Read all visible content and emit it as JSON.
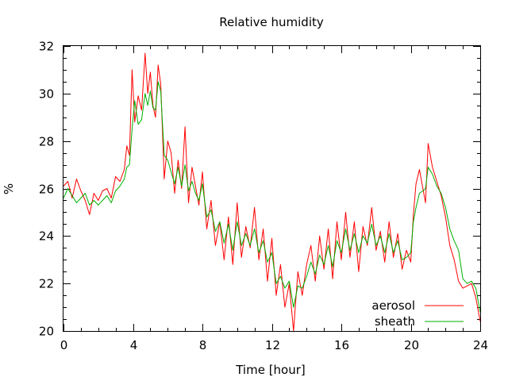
{
  "chart_data": {
    "type": "line",
    "title": "Relative humidity",
    "xlabel": "Time [hour]",
    "ylabel": "%",
    "xlim": [
      0,
      24
    ],
    "ylim": [
      20,
      32
    ],
    "xticks": [
      0,
      4,
      8,
      12,
      16,
      20,
      24
    ],
    "yticks": [
      20,
      22,
      24,
      26,
      28,
      30,
      32
    ],
    "grid": false,
    "legend_position": "bottom-right",
    "series": [
      {
        "name": "aerosol",
        "color": "#ff0000",
        "x": [
          0,
          0.25,
          0.5,
          0.75,
          1,
          1.25,
          1.5,
          1.75,
          2,
          2.25,
          2.5,
          2.75,
          3,
          3.25,
          3.5,
          3.65,
          3.8,
          3.95,
          4.1,
          4.3,
          4.5,
          4.7,
          4.85,
          5.0,
          5.15,
          5.3,
          5.45,
          5.6,
          5.8,
          6.0,
          6.2,
          6.4,
          6.6,
          6.8,
          7.0,
          7.2,
          7.4,
          7.6,
          7.8,
          8.0,
          8.25,
          8.5,
          8.75,
          9.0,
          9.25,
          9.5,
          9.75,
          10.0,
          10.25,
          10.5,
          10.75,
          11.0,
          11.25,
          11.5,
          11.75,
          12.0,
          12.25,
          12.5,
          12.75,
          13.0,
          13.25,
          13.5,
          13.75,
          14.0,
          14.25,
          14.5,
          14.75,
          15.0,
          15.25,
          15.5,
          15.75,
          16.0,
          16.25,
          16.5,
          16.75,
          17.0,
          17.25,
          17.5,
          17.75,
          18.0,
          18.25,
          18.5,
          18.75,
          19.0,
          19.25,
          19.5,
          19.75,
          20.0,
          20.15,
          20.3,
          20.5,
          20.7,
          20.85,
          21.0,
          21.25,
          21.5,
          21.75,
          22.0,
          22.25,
          22.5,
          22.75,
          23.0,
          23.25,
          23.5,
          23.75,
          24.0
        ],
        "values": [
          26.1,
          26.3,
          25.6,
          26.4,
          25.9,
          25.5,
          24.9,
          25.8,
          25.5,
          25.9,
          26.0,
          25.6,
          26.5,
          26.3,
          26.8,
          27.8,
          27.4,
          31.0,
          28.8,
          29.9,
          29.3,
          31.7,
          30.0,
          30.9,
          29.5,
          29.0,
          31.2,
          30.4,
          26.4,
          28.0,
          27.5,
          25.8,
          27.2,
          26.0,
          28.6,
          25.4,
          26.9,
          26.1,
          25.3,
          26.7,
          24.3,
          25.5,
          23.6,
          24.6,
          23.0,
          24.8,
          22.8,
          25.4,
          23.1,
          24.4,
          23.5,
          25.2,
          23.0,
          24.3,
          22.1,
          23.9,
          21.5,
          22.8,
          21.0,
          22.0,
          20.0,
          22.5,
          21.5,
          22.8,
          23.6,
          22.1,
          24.0,
          22.6,
          24.3,
          22.2,
          24.6,
          23.0,
          25.0,
          23.1,
          24.6,
          22.5,
          24.4,
          23.6,
          25.2,
          23.4,
          24.2,
          22.9,
          24.6,
          23.1,
          24.1,
          22.6,
          23.4,
          22.9,
          24.9,
          26.2,
          26.8,
          26.0,
          25.4,
          27.9,
          26.9,
          26.3,
          25.7,
          24.8,
          23.6,
          23.0,
          22.1,
          21.8,
          21.9,
          22.0,
          21.4,
          20.4
        ]
      },
      {
        "name": "sheath",
        "color": "#00b000",
        "x": [
          0,
          0.25,
          0.5,
          0.75,
          1,
          1.25,
          1.5,
          1.75,
          2,
          2.25,
          2.5,
          2.75,
          3,
          3.25,
          3.5,
          3.65,
          3.8,
          3.95,
          4.1,
          4.3,
          4.5,
          4.7,
          4.85,
          5.0,
          5.15,
          5.3,
          5.45,
          5.6,
          5.8,
          6.0,
          6.2,
          6.4,
          6.6,
          6.8,
          7.0,
          7.2,
          7.4,
          7.6,
          7.8,
          8.0,
          8.25,
          8.5,
          8.75,
          9.0,
          9.25,
          9.5,
          9.75,
          10.0,
          10.25,
          10.5,
          10.75,
          11.0,
          11.25,
          11.5,
          11.75,
          12.0,
          12.25,
          12.5,
          12.75,
          13.0,
          13.25,
          13.5,
          13.75,
          14.0,
          14.25,
          14.5,
          14.75,
          15.0,
          15.25,
          15.5,
          15.75,
          16.0,
          16.25,
          16.5,
          16.75,
          17.0,
          17.25,
          17.5,
          17.75,
          18.0,
          18.25,
          18.5,
          18.75,
          19.0,
          19.25,
          19.5,
          19.75,
          20.0,
          20.15,
          20.3,
          20.5,
          20.7,
          20.85,
          21.0,
          21.25,
          21.5,
          21.75,
          22.0,
          22.25,
          22.5,
          22.75,
          23.0,
          23.25,
          23.5,
          23.75,
          24.0
        ],
        "values": [
          25.6,
          26.0,
          25.7,
          25.4,
          25.6,
          25.8,
          25.3,
          25.5,
          25.3,
          25.5,
          25.7,
          25.4,
          25.9,
          26.1,
          26.4,
          26.9,
          27.0,
          28.5,
          29.7,
          28.7,
          28.9,
          30.0,
          29.5,
          30.1,
          29.4,
          29.3,
          30.5,
          30.1,
          27.4,
          27.2,
          26.7,
          26.2,
          26.9,
          26.1,
          27.0,
          25.9,
          26.3,
          25.8,
          25.5,
          26.2,
          24.8,
          25.1,
          24.2,
          24.6,
          23.7,
          24.5,
          23.4,
          24.6,
          23.6,
          24.1,
          23.6,
          24.3,
          23.3,
          23.8,
          22.9,
          23.3,
          22.0,
          22.3,
          21.8,
          22.1,
          21.0,
          21.9,
          21.8,
          22.3,
          22.9,
          22.4,
          23.2,
          22.8,
          23.6,
          22.7,
          23.8,
          23.3,
          24.3,
          23.4,
          24.1,
          23.3,
          24.0,
          23.7,
          24.5,
          23.6,
          24.0,
          23.3,
          24.1,
          23.3,
          23.8,
          23.0,
          23.1,
          23.3,
          24.6,
          25.2,
          25.8,
          25.9,
          26.0,
          26.9,
          26.6,
          26.1,
          25.8,
          25.2,
          24.3,
          23.8,
          23.4,
          22.2,
          22.0,
          22.1,
          21.8,
          20.8
        ]
      }
    ]
  }
}
